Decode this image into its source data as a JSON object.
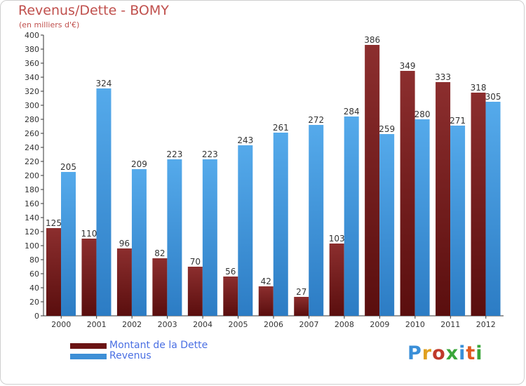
{
  "chart_data": {
    "type": "bar",
    "title": "Revenus/Dette - BOMY",
    "subtitle": "(en milliers d'€)",
    "categories": [
      "2000",
      "2001",
      "2002",
      "2003",
      "2004",
      "2005",
      "2006",
      "2007",
      "2008",
      "2009",
      "2010",
      "2011",
      "2012"
    ],
    "series": [
      {
        "name": "Montant de la Dette",
        "color": "#7a1f1f",
        "values": [
          125,
          110,
          96,
          82,
          70,
          56,
          42,
          27,
          103,
          386,
          349,
          333,
          318
        ]
      },
      {
        "name": "Revenus",
        "color": "#3d8fd6",
        "values": [
          205,
          324,
          209,
          223,
          223,
          243,
          261,
          272,
          284,
          259,
          280,
          271,
          305
        ]
      }
    ],
    "ylim": [
      0,
      400
    ],
    "ytick_step": 20,
    "grid": false,
    "legend_position": "bottom-left"
  },
  "logo": {
    "text": "Proxiti",
    "letter_colors": [
      "#3a8fd8",
      "#e0a020",
      "#c0392b",
      "#3aa63a",
      "#3a8fd8",
      "#e05a20",
      "#3aa63a"
    ]
  }
}
